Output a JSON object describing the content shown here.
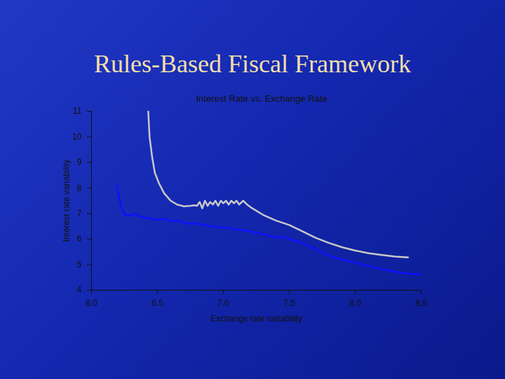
{
  "chart_data": {
    "type": "line",
    "title": "Rules-Based Fiscal Framework",
    "subtitle": "Interest Rate vs. Exchange Rate",
    "x_label": "Exchange rate variability",
    "y_label": "Interest rate variability",
    "xlim": [
      6.0,
      8.5
    ],
    "xticks": [
      {
        "value": 6.0,
        "label": "6.0"
      },
      {
        "value": 6.5,
        "label": "6.5"
      },
      {
        "value": 7.0,
        "label": "7.0"
      },
      {
        "value": 7.5,
        "label": "7.5"
      },
      {
        "value": 8.0,
        "label": "8.0"
      },
      {
        "value": 8.5,
        "label": "8.5"
      }
    ],
    "ylim": [
      4,
      11
    ],
    "yticks": [
      4,
      5,
      6,
      7,
      8,
      9,
      10,
      11
    ],
    "grid": false,
    "series": [
      {
        "color": "#c8c8c8",
        "x": [
          6.43,
          6.44,
          6.46,
          6.48,
          6.51,
          6.55,
          6.6,
          6.65,
          6.7,
          6.75,
          6.78,
          6.8,
          6.82,
          6.84,
          6.86,
          6.88,
          6.9,
          6.92,
          6.94,
          6.96,
          6.98,
          7.0,
          7.02,
          7.04,
          7.06,
          7.08,
          7.1,
          7.12,
          7.15,
          7.18,
          7.22,
          7.3,
          7.4,
          7.5,
          7.6,
          7.7,
          7.8,
          7.9,
          8.0,
          8.1,
          8.2,
          8.3,
          8.4
        ],
        "values": [
          11,
          10.0,
          9.2,
          8.6,
          8.2,
          7.8,
          7.5,
          7.35,
          7.28,
          7.3,
          7.32,
          7.3,
          7.45,
          7.2,
          7.5,
          7.3,
          7.45,
          7.35,
          7.5,
          7.3,
          7.5,
          7.4,
          7.5,
          7.35,
          7.5,
          7.4,
          7.5,
          7.35,
          7.5,
          7.35,
          7.2,
          6.95,
          6.72,
          6.55,
          6.3,
          6.05,
          5.85,
          5.68,
          5.55,
          5.45,
          5.38,
          5.32,
          5.28
        ]
      },
      {
        "color": "#1010ff",
        "x": [
          6.19,
          6.21,
          6.23,
          6.25,
          6.28,
          6.3,
          6.33,
          6.36,
          6.4,
          6.45,
          6.5,
          6.55,
          6.6,
          6.65,
          6.7,
          6.75,
          6.8,
          6.85,
          6.9,
          6.95,
          7.0,
          7.1,
          7.2,
          7.3,
          7.4,
          7.45,
          7.5,
          7.6,
          7.7,
          7.8,
          7.9,
          8.0,
          8.1,
          8.2,
          8.3,
          8.4,
          8.5
        ],
        "values": [
          8.1,
          7.6,
          7.2,
          6.95,
          6.9,
          6.95,
          7.0,
          6.9,
          6.85,
          6.8,
          6.75,
          6.8,
          6.7,
          6.72,
          6.65,
          6.6,
          6.6,
          6.55,
          6.5,
          6.48,
          6.45,
          6.38,
          6.3,
          6.2,
          6.05,
          6.1,
          6.0,
          5.85,
          5.6,
          5.35,
          5.2,
          5.08,
          4.95,
          4.82,
          4.72,
          4.65,
          4.62
        ]
      }
    ]
  }
}
